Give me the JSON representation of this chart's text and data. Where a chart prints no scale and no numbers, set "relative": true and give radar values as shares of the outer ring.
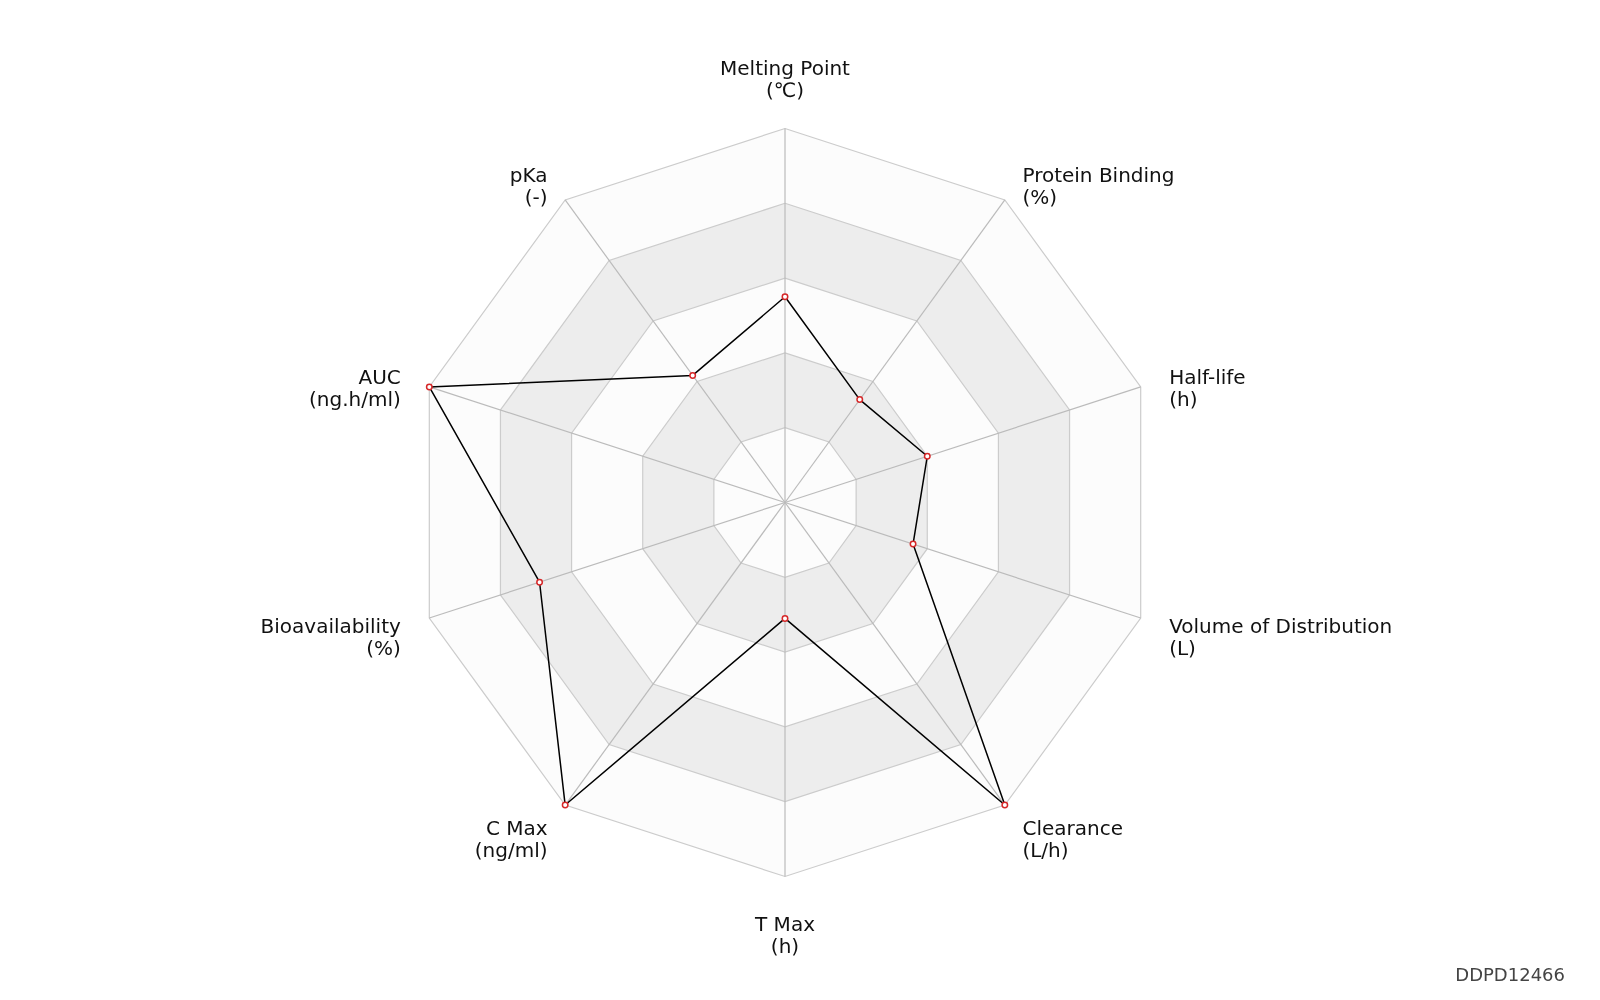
{
  "chart_data": {
    "type": "radar",
    "relative": true,
    "grid": true,
    "marker": "circle",
    "categories": [
      "Melting Point\n(℃)",
      "Protein Binding\n(%)",
      "Half-life\n(h)",
      "Volume of Distribution\n(L)",
      "Clearance\n(L/h)",
      "T Max\n(h)",
      "C Max\n(ng/ml)",
      "Bioavailability\n(%)",
      "AUC\n(ng.h/ml)",
      "pKa\n(-)"
    ],
    "series": [
      {
        "color": "#000000",
        "values": [
          0.55,
          0.34,
          0.4,
          0.36,
          1,
          0.31,
          1,
          0.69,
          1,
          0.42
        ]
      }
    ],
    "annotations": [
      "DDPD12466"
    ]
  }
}
